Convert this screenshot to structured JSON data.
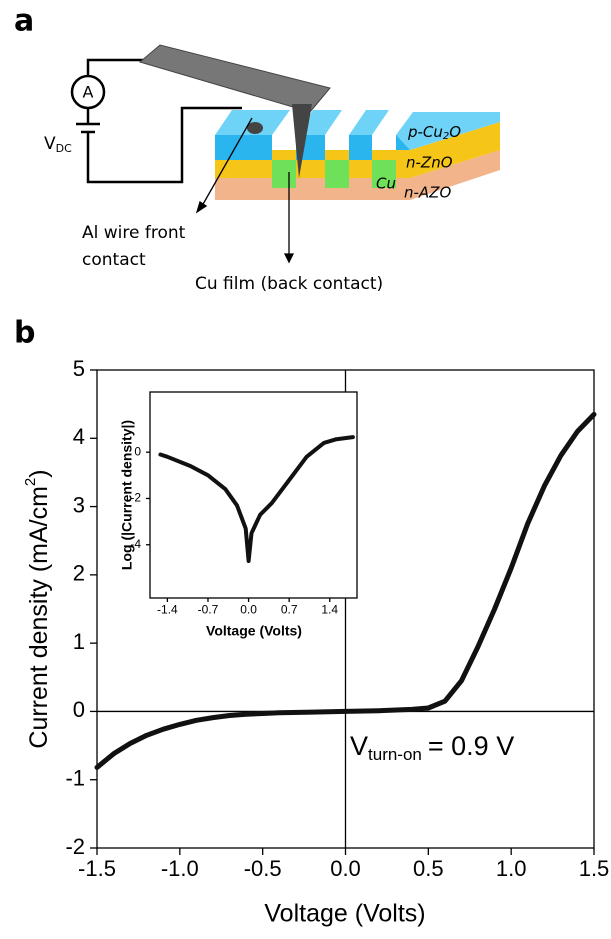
{
  "panel_a": {
    "label": "a",
    "ammeter": "A",
    "source": {
      "symbol": "V",
      "subscript": "DC"
    },
    "layers": {
      "p_cu2o": {
        "prefix": "p-Cu",
        "subscript": "2",
        "suffix": "O"
      },
      "n_zno": "n-ZnO",
      "cu": "Cu",
      "n_azo": "n-AZO"
    },
    "callouts": {
      "al_wire": [
        "Al wire front",
        "contact"
      ],
      "cu_film": "Cu film (back contact)"
    }
  },
  "chart_data": [
    {
      "type": "line",
      "panel_label": "b",
      "x_label": "Voltage (Volts)",
      "y_label": {
        "text": "Current density (mA/cm",
        "superscript": "2",
        "suffix": ")"
      },
      "annotation": {
        "symbol": "V",
        "subscript": "turn-on",
        "text": "= 0.9 V"
      },
      "x": [
        -1.5,
        -1.4,
        -1.3,
        -1.2,
        -1.1,
        -1.0,
        -0.9,
        -0.8,
        -0.7,
        -0.6,
        -0.5,
        -0.4,
        -0.2,
        0.0,
        0.2,
        0.4,
        0.5,
        0.6,
        0.7,
        0.8,
        0.9,
        1.0,
        1.1,
        1.2,
        1.3,
        1.4,
        1.5
      ],
      "values": [
        -0.82,
        -0.62,
        -0.47,
        -0.35,
        -0.26,
        -0.19,
        -0.13,
        -0.09,
        -0.06,
        -0.04,
        -0.03,
        -0.02,
        -0.01,
        0.0,
        0.01,
        0.03,
        0.05,
        0.15,
        0.45,
        0.95,
        1.5,
        2.1,
        2.75,
        3.3,
        3.75,
        4.1,
        4.35
      ],
      "color": "#111111",
      "xlim": [
        -1.5,
        1.5
      ],
      "ylim": [
        -2,
        5
      ],
      "xticks": [
        -1.5,
        {
          "value": -1,
          "label": "-1.0"
        },
        -0.5,
        {
          "value": 0,
          "label": "0.0"
        },
        0.5,
        {
          "value": 1,
          "label": "1.0"
        },
        1.5
      ],
      "yticks": [
        -2,
        -1,
        0,
        1,
        2,
        3,
        4,
        5
      ],
      "zero_lines": true
    },
    {
      "type": "line",
      "x_label": "Voltage (Volts)",
      "y_label": "Log (|Current density|)",
      "x": [
        -1.52,
        -1.4,
        -1.0,
        -0.7,
        -0.4,
        -0.2,
        -0.05,
        0.0,
        0.05,
        0.2,
        0.4,
        0.7,
        1.0,
        1.3,
        1.5,
        1.8
      ],
      "values": [
        -0.1,
        -0.2,
        -0.6,
        -1.0,
        -1.6,
        -2.3,
        -3.3,
        -4.7,
        -3.5,
        -2.7,
        -2.2,
        -1.2,
        -0.2,
        0.4,
        0.55,
        0.65
      ],
      "color": "#111111",
      "xlim": [
        -1.7,
        1.87
      ],
      "ylim": [
        -6.3,
        2.6
      ],
      "xticks": [
        -1.4,
        -0.7,
        {
          "value": 0,
          "label": "0.0"
        },
        0.7,
        1.4
      ],
      "yticks": [
        -4,
        -2,
        0
      ],
      "zero_lines": false
    }
  ]
}
